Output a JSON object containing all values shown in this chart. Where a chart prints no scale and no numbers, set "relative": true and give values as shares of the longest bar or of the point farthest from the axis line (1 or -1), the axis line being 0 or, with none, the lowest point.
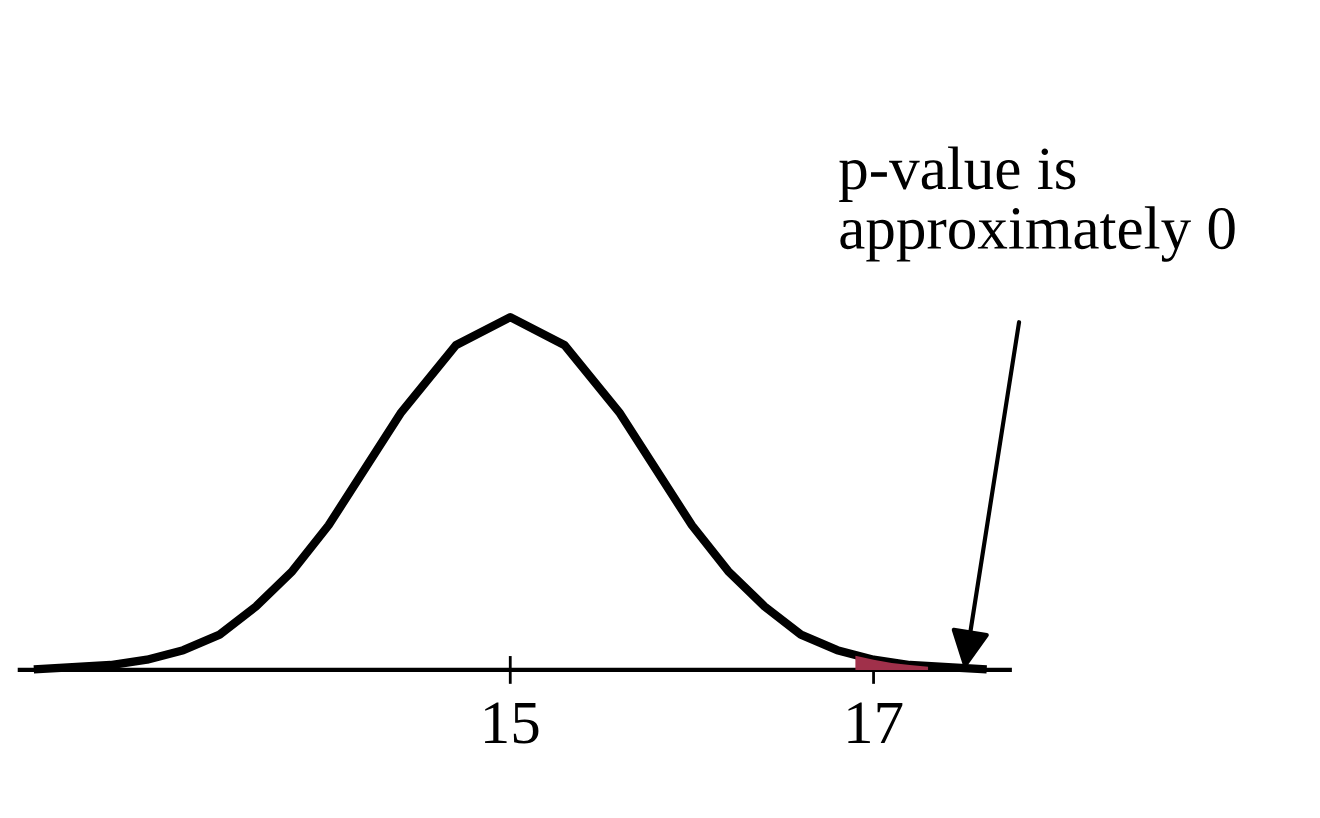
{
  "chart_data": {
    "type": "line",
    "relative": true,
    "x": [
      12.4,
      12.8,
      13.0,
      13.2,
      13.4,
      13.6,
      13.8,
      14.0,
      14.2,
      14.4,
      14.7,
      15.0,
      15.3,
      15.6,
      15.8,
      16.0,
      16.2,
      16.4,
      16.6,
      16.8,
      17.0,
      17.2,
      17.6
    ],
    "series": [
      {
        "color": "#000000",
        "values": [
          0.0025,
          0.014,
          0.029,
          0.056,
          0.1,
          0.18,
          0.28,
          0.41,
          0.57,
          0.73,
          0.92,
          1,
          0.92,
          0.73,
          0.57,
          0.41,
          0.28,
          0.18,
          0.1,
          0.056,
          0.029,
          0.014,
          0.0025
        ]
      },
      {
        "type": "area",
        "color": "#a0304a",
        "x": [
          16.9,
          17.0,
          17.1,
          17.2,
          17.3
        ],
        "values": [
          0.04,
          0.029,
          0.02,
          0.014,
          0.009
        ]
      }
    ],
    "xlim": [
      12.3,
      17.75
    ],
    "xticks": [
      15,
      17
    ],
    "tick_labels": "x",
    "grid": false,
    "legend": false,
    "marker": "none",
    "line_style": "solid",
    "annotations": [
      {
        "text": "p-value is\napproximately 0",
        "x": 17.5,
        "y": 0
      }
    ]
  }
}
